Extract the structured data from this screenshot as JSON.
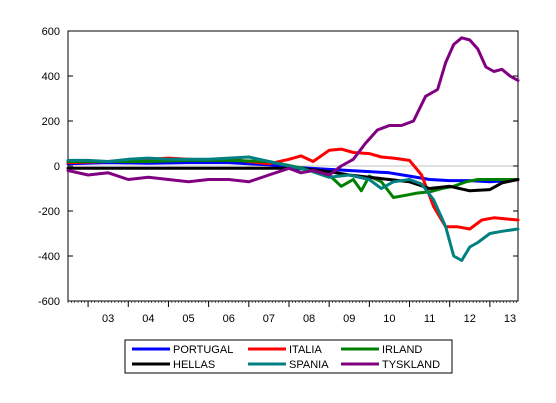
{
  "chart_data": {
    "type": "line",
    "title": "",
    "xlabel": "",
    "ylabel": "",
    "ylim": [
      -600,
      600
    ],
    "y_ticks": [
      -600,
      -400,
      -200,
      0,
      200,
      400,
      600
    ],
    "y_tick_labels": [
      "-600",
      "-400",
      "-200",
      "0",
      "200",
      "400",
      "600"
    ],
    "xlim": [
      2002.5,
      2013.7
    ],
    "x_ticks": [
      2003.5,
      2004.5,
      2005.5,
      2006.5,
      2007.5,
      2008.5,
      2009.5,
      2010.5,
      2011.5,
      2012.5,
      2013.5
    ],
    "x_tick_labels": [
      "03",
      "04",
      "05",
      "06",
      "07",
      "08",
      "09",
      "10",
      "11",
      "12",
      "13"
    ],
    "grid": false,
    "legend_position": "bottom-center",
    "series": [
      {
        "name": "PORTUGAL",
        "color": "#0000ff",
        "x": [
          2002.5,
          2003.5,
          2004.5,
          2005.5,
          2006.5,
          2007.5,
          2008.0,
          2008.5,
          2009.0,
          2009.5,
          2010.0,
          2010.5,
          2011.0,
          2011.5,
          2012.0,
          2012.5,
          2013.0,
          2013.5,
          2013.7
        ],
        "values": [
          10,
          15,
          12,
          15,
          15,
          5,
          -5,
          -10,
          -15,
          -20,
          -25,
          -30,
          -45,
          -60,
          -65,
          -65,
          -70,
          -65,
          -60
        ]
      },
      {
        "name": "ITALIA",
        "color": "#ff0000",
        "x": [
          2002.5,
          2003.5,
          2004.0,
          2004.5,
          2005.0,
          2005.5,
          2006.0,
          2006.5,
          2007.0,
          2007.5,
          2008.0,
          2008.3,
          2008.6,
          2009.0,
          2009.3,
          2009.6,
          2010.0,
          2010.3,
          2010.6,
          2011.0,
          2011.3,
          2011.6,
          2011.9,
          2012.2,
          2012.5,
          2012.8,
          2013.1,
          2013.4,
          2013.7
        ],
        "values": [
          15,
          20,
          25,
          30,
          35,
          30,
          25,
          30,
          20,
          10,
          30,
          45,
          20,
          70,
          75,
          60,
          55,
          40,
          35,
          25,
          -40,
          -180,
          -270,
          -270,
          -280,
          -240,
          -230,
          -235,
          -240
        ]
      },
      {
        "name": "IRLAND",
        "color": "#008000",
        "x": [
          2002.5,
          2003.5,
          2004.5,
          2005.5,
          2006.5,
          2007.5,
          2008.2,
          2008.6,
          2009.0,
          2009.3,
          2009.6,
          2009.8,
          2010.0,
          2010.3,
          2010.6,
          2010.9,
          2011.2,
          2011.5,
          2011.8,
          2012.1,
          2012.4,
          2012.7,
          2013.0,
          2013.3,
          2013.7
        ],
        "values": [
          20,
          20,
          20,
          25,
          25,
          20,
          -5,
          -20,
          -40,
          -90,
          -60,
          -110,
          -45,
          -70,
          -140,
          -130,
          -120,
          -115,
          -100,
          -90,
          -70,
          -60,
          -60,
          -60,
          -60
        ]
      },
      {
        "name": "HELLAS",
        "color": "#000000",
        "x": [
          2002.5,
          2003.5,
          2004.5,
          2005.5,
          2006.5,
          2007.5,
          2008.0,
          2008.5,
          2009.0,
          2009.5,
          2010.0,
          2010.5,
          2011.0,
          2011.5,
          2012.0,
          2012.5,
          2013.0,
          2013.3,
          2013.7
        ],
        "values": [
          -10,
          -10,
          -10,
          -10,
          -10,
          -10,
          -10,
          -15,
          -25,
          -40,
          -50,
          -60,
          -70,
          -100,
          -90,
          -110,
          -105,
          -75,
          -60
        ]
      },
      {
        "name": "SPANIA",
        "color": "#008080",
        "x": [
          2002.5,
          2003.0,
          2003.5,
          2004.0,
          2004.5,
          2005.0,
          2005.5,
          2006.0,
          2006.5,
          2007.0,
          2007.5,
          2008.0,
          2008.5,
          2009.0,
          2009.5,
          2010.0,
          2010.3,
          2010.6,
          2011.0,
          2011.3,
          2011.6,
          2011.9,
          2012.1,
          2012.3,
          2012.5,
          2012.7,
          2013.0,
          2013.3,
          2013.7
        ],
        "values": [
          25,
          25,
          20,
          30,
          35,
          30,
          30,
          30,
          35,
          40,
          20,
          0,
          -20,
          -50,
          -40,
          -60,
          -100,
          -70,
          -60,
          -80,
          -150,
          -270,
          -400,
          -420,
          -360,
          -340,
          -300,
          -290,
          -280
        ]
      },
      {
        "name": "TYSKLAND",
        "color": "#800080",
        "x": [
          2002.5,
          2003.0,
          2003.5,
          2004.0,
          2004.5,
          2005.0,
          2005.5,
          2006.0,
          2006.5,
          2007.0,
          2007.5,
          2008.0,
          2008.3,
          2008.6,
          2009.0,
          2009.3,
          2009.6,
          2009.9,
          2010.2,
          2010.5,
          2010.8,
          2011.1,
          2011.4,
          2011.7,
          2011.9,
          2012.1,
          2012.3,
          2012.5,
          2012.7,
          2012.9,
          2013.1,
          2013.3,
          2013.5,
          2013.7
        ],
        "values": [
          -20,
          -40,
          -30,
          -60,
          -50,
          -60,
          -70,
          -60,
          -60,
          -70,
          -40,
          -10,
          -30,
          -20,
          -40,
          0,
          30,
          100,
          160,
          180,
          180,
          200,
          310,
          340,
          460,
          540,
          570,
          560,
          520,
          440,
          420,
          430,
          400,
          380
        ]
      }
    ]
  }
}
